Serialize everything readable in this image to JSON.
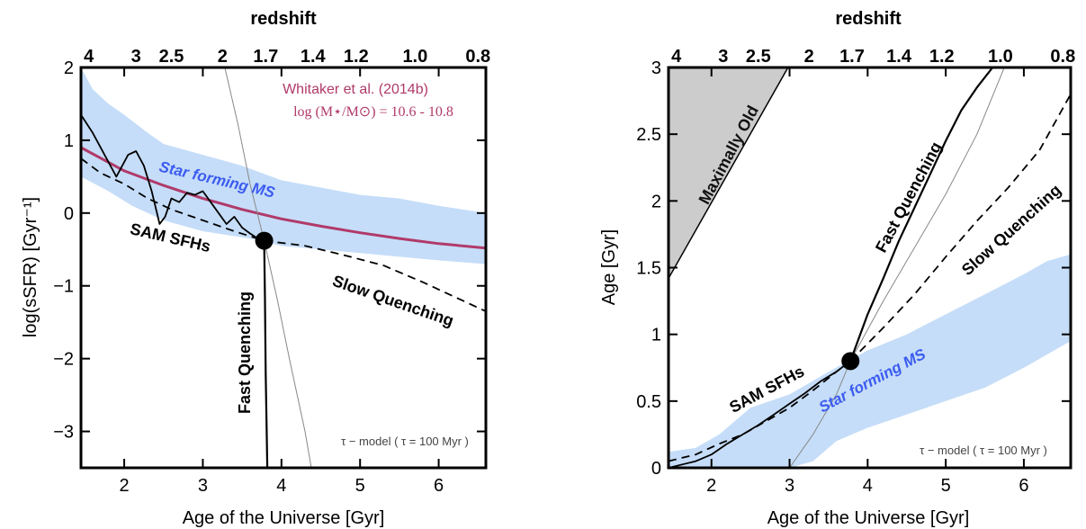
{
  "chart_data": [
    {
      "type": "line",
      "xlabel": "Age of the Universe [Gyr]",
      "ylabel": "log(sSFR) [Gyr⁻¹]",
      "top_axis_label": "redshift",
      "xlim": [
        1.45,
        6.6
      ],
      "ylim": [
        -3.5,
        2.0
      ],
      "x_ticks": [
        "2",
        "3",
        "4",
        "5",
        "6"
      ],
      "y_ticks": [
        "−3",
        "−2",
        "−1",
        "0",
        "1",
        "2"
      ],
      "top_ticks": [
        {
          "label": "4",
          "x": 1.55
        },
        {
          "label": "3",
          "x": 2.15
        },
        {
          "label": "2.5",
          "x": 2.6
        },
        {
          "label": "2",
          "x": 3.25
        },
        {
          "label": "1.7",
          "x": 3.8
        },
        {
          "label": "1.4",
          "x": 4.4
        },
        {
          "label": "1.2",
          "x": 4.95
        },
        {
          "label": "1.0",
          "x": 5.7
        },
        {
          "label": "0.8",
          "x": 6.5
        }
      ],
      "band_color": "#c5ddf8",
      "ms_color": "#b03a6a",
      "ms_label": "Star forming MS",
      "whitaker_label": "Whitaker et al. (2014b)",
      "mass_label": "log (M⋆/M⊙) = 10.6 - 10.8",
      "sam_label": "SAM SFHs",
      "fast_label": "Fast Quenching",
      "slow_label": "Slow Quenching",
      "tau_label": "τ − model ( τ = 100 Myr )",
      "quench_point": {
        "x": 3.78,
        "y": -0.38
      },
      "series": [
        {
          "style": "band",
          "upper": [
            [
              1.45,
              2.0
            ],
            [
              1.6,
              1.7
            ],
            [
              1.8,
              1.5
            ],
            [
              2.0,
              1.35
            ],
            [
              2.3,
              1.1
            ],
            [
              2.5,
              0.95
            ],
            [
              3.0,
              0.8
            ],
            [
              3.5,
              0.65
            ],
            [
              4.0,
              0.45
            ],
            [
              4.5,
              0.35
            ],
            [
              5.0,
              0.25
            ],
            [
              5.5,
              0.2
            ],
            [
              6.0,
              0.1
            ],
            [
              6.6,
              0.0
            ]
          ],
          "lower": [
            [
              1.45,
              0.5
            ],
            [
              1.8,
              0.3
            ],
            [
              2.1,
              0.1
            ],
            [
              2.5,
              -0.1
            ],
            [
              3.0,
              -0.25
            ],
            [
              3.3,
              -0.3
            ],
            [
              3.6,
              -0.35
            ],
            [
              4.0,
              -0.45
            ],
            [
              4.5,
              -0.5
            ],
            [
              5.0,
              -0.55
            ],
            [
              5.5,
              -0.6
            ],
            [
              6.0,
              -0.65
            ],
            [
              6.6,
              -0.7
            ]
          ]
        },
        {
          "style": "ms",
          "points": [
            [
              1.45,
              0.9
            ],
            [
              2.0,
              0.58
            ],
            [
              2.5,
              0.38
            ],
            [
              3.0,
              0.2
            ],
            [
              3.5,
              0.05
            ],
            [
              4.0,
              -0.08
            ],
            [
              4.5,
              -0.18
            ],
            [
              5.0,
              -0.27
            ],
            [
              5.5,
              -0.35
            ],
            [
              6.0,
              -0.42
            ],
            [
              6.6,
              -0.48
            ]
          ]
        },
        {
          "style": "sam",
          "points": [
            [
              1.45,
              1.35
            ],
            [
              1.6,
              1.1
            ],
            [
              1.75,
              0.8
            ],
            [
              1.9,
              0.5
            ],
            [
              2.05,
              0.8
            ],
            [
              2.15,
              0.85
            ],
            [
              2.25,
              0.65
            ],
            [
              2.35,
              0.3
            ],
            [
              2.45,
              -0.15
            ],
            [
              2.52,
              -0.05
            ],
            [
              2.6,
              0.2
            ],
            [
              2.7,
              0.15
            ],
            [
              2.8,
              0.28
            ],
            [
              2.9,
              0.25
            ],
            [
              3.0,
              0.3
            ],
            [
              3.1,
              0.15
            ],
            [
              3.2,
              0.0
            ],
            [
              3.3,
              -0.15
            ],
            [
              3.4,
              -0.05
            ],
            [
              3.5,
              -0.2
            ],
            [
              3.6,
              -0.28
            ],
            [
              3.7,
              -0.35
            ],
            [
              3.78,
              -0.38
            ]
          ]
        },
        {
          "style": "sam_dash",
          "points": [
            [
              1.45,
              0.75
            ],
            [
              1.7,
              0.55
            ],
            [
              2.0,
              0.4
            ],
            [
              2.3,
              0.2
            ],
            [
              2.6,
              0.05
            ],
            [
              3.0,
              -0.1
            ],
            [
              3.4,
              -0.25
            ],
            [
              3.78,
              -0.38
            ]
          ]
        },
        {
          "style": "slow",
          "points": [
            [
              3.78,
              -0.38
            ],
            [
              4.3,
              -0.45
            ],
            [
              4.8,
              -0.58
            ],
            [
              5.3,
              -0.72
            ],
            [
              5.8,
              -0.95
            ],
            [
              6.2,
              -1.15
            ],
            [
              6.6,
              -1.35
            ]
          ]
        },
        {
          "style": "fast",
          "points": [
            [
              3.78,
              -0.38
            ],
            [
              3.79,
              -1.2
            ],
            [
              3.8,
              -2.2
            ],
            [
              3.82,
              -3.5
            ]
          ]
        },
        {
          "style": "thin",
          "points": [
            [
              3.28,
              2.0
            ],
            [
              3.45,
              1.2
            ],
            [
              3.6,
              0.4
            ],
            [
              3.78,
              -0.38
            ],
            [
              3.95,
              -1.2
            ],
            [
              4.1,
              -2.0
            ],
            [
              4.3,
              -3.0
            ],
            [
              4.38,
              -3.5
            ]
          ]
        }
      ]
    },
    {
      "type": "line",
      "xlabel": "Age of the Universe [Gyr]",
      "ylabel": "Age [Gyr]",
      "top_axis_label": "redshift",
      "xlim": [
        1.45,
        6.6
      ],
      "ylim": [
        0,
        3.0
      ],
      "x_ticks": [
        "2",
        "3",
        "4",
        "5",
        "6"
      ],
      "y_ticks": [
        "0",
        "0.5",
        "1",
        "1.5",
        "2",
        "2.5",
        "3"
      ],
      "top_ticks": [
        {
          "label": "4",
          "x": 1.55
        },
        {
          "label": "3",
          "x": 2.15
        },
        {
          "label": "2.5",
          "x": 2.6
        },
        {
          "label": "2",
          "x": 3.25
        },
        {
          "label": "1.7",
          "x": 3.8
        },
        {
          "label": "1.4",
          "x": 4.4
        },
        {
          "label": "1.2",
          "x": 4.95
        },
        {
          "label": "1.0",
          "x": 5.7
        },
        {
          "label": "0.8",
          "x": 6.5
        }
      ],
      "band_color": "#c5ddf8",
      "old_color": "#cccccc",
      "old_label": "Maximally Old",
      "ms_label": "Star forming MS",
      "sam_label": "SAM SFHs",
      "fast_label": "Fast Quenching",
      "slow_label": "Slow Quenching",
      "tau_label": "τ − model ( τ = 100 Myr )",
      "quench_point": {
        "x": 3.78,
        "y": 0.8
      },
      "series": [
        {
          "style": "old_region",
          "points": [
            [
              1.45,
              1.42
            ],
            [
              1.45,
              3.0
            ],
            [
              2.98,
              3.0
            ]
          ]
        },
        {
          "style": "band",
          "upper": [
            [
              1.45,
              0.12
            ],
            [
              1.8,
              0.15
            ],
            [
              2.1,
              0.25
            ],
            [
              2.5,
              0.45
            ],
            [
              3.0,
              0.55
            ],
            [
              3.5,
              0.72
            ],
            [
              4.0,
              0.88
            ],
            [
              4.5,
              1.0
            ],
            [
              5.0,
              1.15
            ],
            [
              5.5,
              1.3
            ],
            [
              6.0,
              1.45
            ],
            [
              6.3,
              1.55
            ],
            [
              6.6,
              1.6
            ]
          ],
          "lower": [
            [
              1.45,
              0.0
            ],
            [
              2.5,
              0.0
            ],
            [
              3.0,
              0.0
            ],
            [
              3.3,
              0.05
            ],
            [
              3.6,
              0.2
            ],
            [
              4.0,
              0.3
            ],
            [
              4.5,
              0.4
            ],
            [
              5.0,
              0.5
            ],
            [
              5.5,
              0.6
            ],
            [
              6.0,
              0.75
            ],
            [
              6.3,
              0.85
            ],
            [
              6.6,
              0.95
            ]
          ]
        },
        {
          "style": "sam",
          "points": [
            [
              1.45,
              0.0
            ],
            [
              1.8,
              0.05
            ],
            [
              2.0,
              0.1
            ],
            [
              2.2,
              0.18
            ],
            [
              2.4,
              0.25
            ],
            [
              2.6,
              0.32
            ],
            [
              2.8,
              0.4
            ],
            [
              3.0,
              0.48
            ],
            [
              3.2,
              0.56
            ],
            [
              3.4,
              0.65
            ],
            [
              3.6,
              0.72
            ],
            [
              3.78,
              0.8
            ]
          ]
        },
        {
          "style": "sam_dash",
          "points": [
            [
              1.45,
              0.05
            ],
            [
              1.8,
              0.1
            ],
            [
              2.1,
              0.18
            ],
            [
              2.4,
              0.25
            ],
            [
              2.7,
              0.35
            ],
            [
              3.0,
              0.45
            ],
            [
              3.3,
              0.58
            ],
            [
              3.6,
              0.72
            ],
            [
              3.78,
              0.8
            ]
          ]
        },
        {
          "style": "fast",
          "points": [
            [
              3.78,
              0.8
            ],
            [
              4.0,
              1.15
            ],
            [
              4.2,
              1.42
            ],
            [
              4.4,
              1.7
            ],
            [
              4.6,
              1.95
            ],
            [
              4.8,
              2.2
            ],
            [
              5.0,
              2.45
            ],
            [
              5.2,
              2.68
            ],
            [
              5.4,
              2.85
            ],
            [
              5.6,
              3.0
            ]
          ]
        },
        {
          "style": "slow",
          "points": [
            [
              3.78,
              0.8
            ],
            [
              4.2,
              1.05
            ],
            [
              4.6,
              1.3
            ],
            [
              5.0,
              1.58
            ],
            [
              5.4,
              1.85
            ],
            [
              5.8,
              2.1
            ],
            [
              6.2,
              2.38
            ],
            [
              6.6,
              2.8
            ]
          ]
        },
        {
          "style": "thin",
          "points": [
            [
              3.0,
              0.0
            ],
            [
              3.3,
              0.25
            ],
            [
              3.6,
              0.55
            ],
            [
              3.78,
              0.8
            ],
            [
              4.2,
              1.25
            ],
            [
              4.6,
              1.65
            ],
            [
              5.0,
              2.05
            ],
            [
              5.4,
              2.5
            ],
            [
              5.75,
              3.0
            ]
          ]
        }
      ]
    }
  ]
}
